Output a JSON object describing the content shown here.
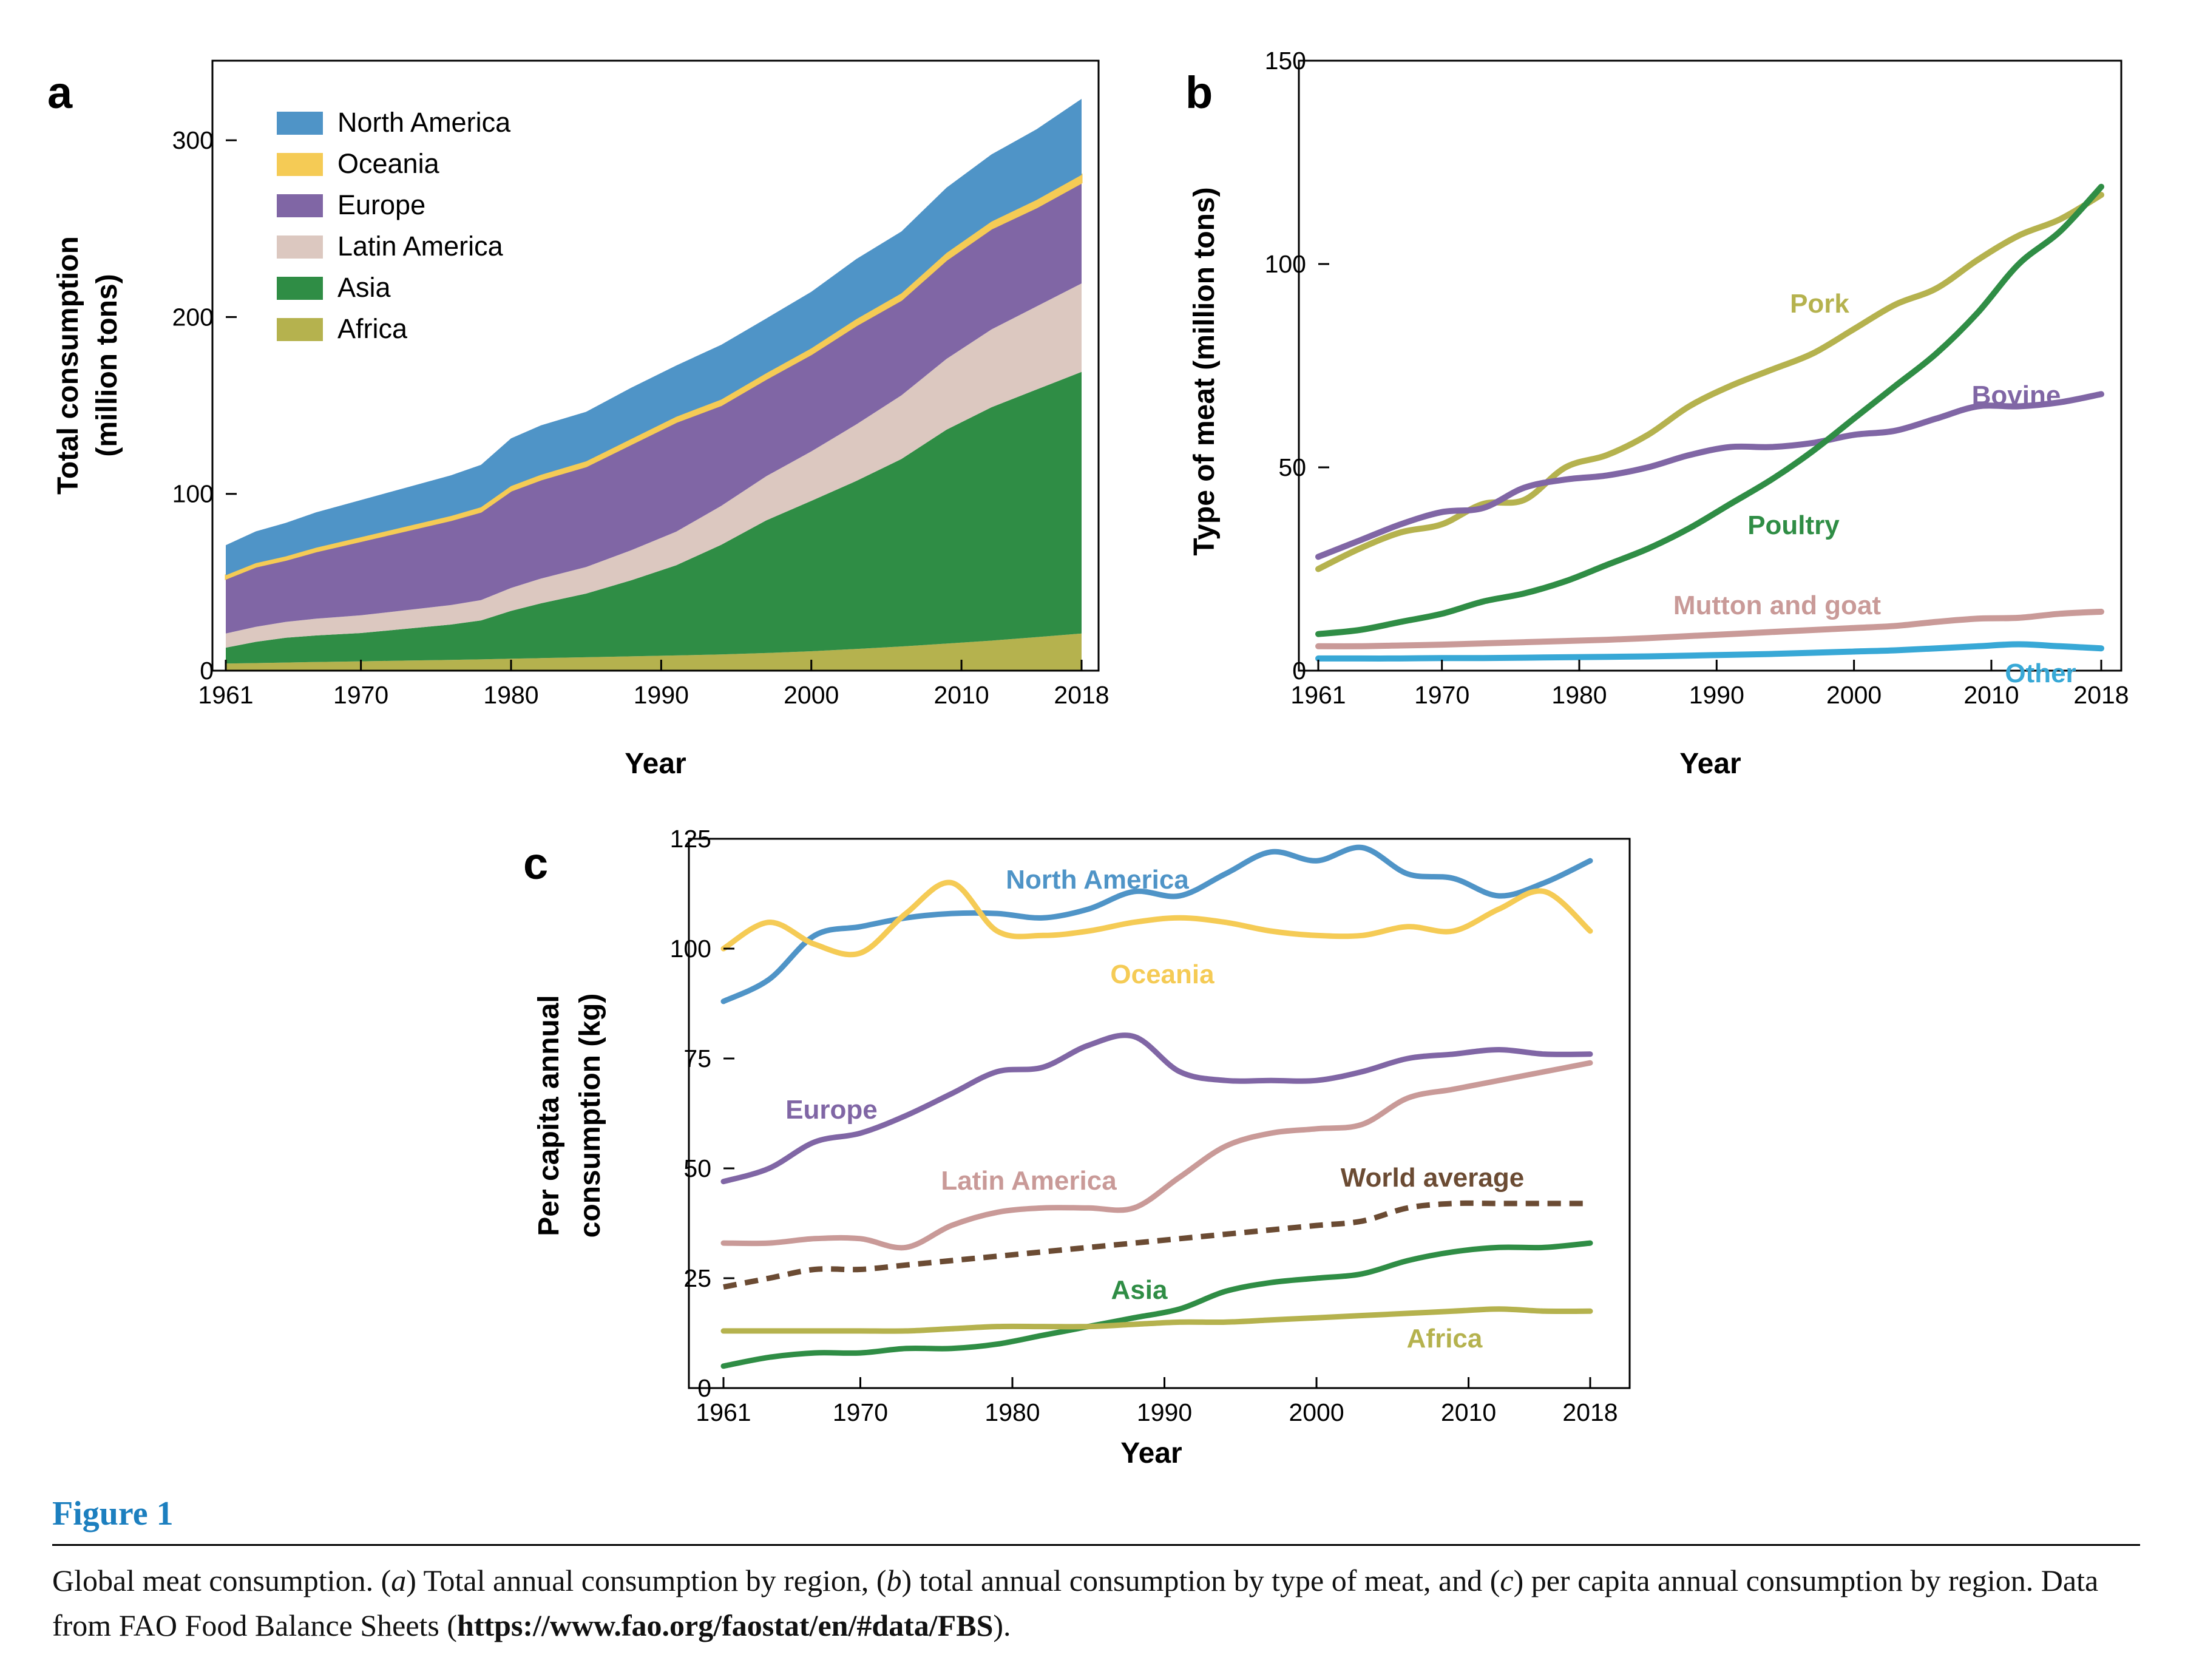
{
  "figure": {
    "label": "Figure 1",
    "caption": {
      "lead": "Global meat consumption. (",
      "a": "a",
      "mid1": ") Total annual consumption by region, (",
      "b": "b",
      "mid2": ") total annual consumption by type of meat, and (",
      "c": "c",
      "mid3": ") per capita annual consumption by region. Data from FAO Food Balance Sheets (",
      "link": "https://www.fao.org/faostat/en/#data/FBS",
      "tail": ")."
    }
  },
  "chart_data": [
    {
      "panel": "a",
      "type": "area",
      "stacked": true,
      "xlabel": "Year",
      "ylabel_lines": [
        "Total consumption",
        "(million tons)"
      ],
      "xlim": [
        1961,
        2018
      ],
      "ylim": [
        0,
        345
      ],
      "xticks": [
        1961,
        1970,
        1980,
        1990,
        2000,
        2010,
        2018
      ],
      "yticks": [
        0,
        100,
        200,
        300
      ],
      "legend_position": "top-left",
      "x": [
        1961,
        1963,
        1965,
        1967,
        1970,
        1973,
        1976,
        1978,
        1980,
        1982,
        1985,
        1988,
        1991,
        1994,
        1997,
        2000,
        2003,
        2006,
        2009,
        2012,
        2015,
        2018
      ],
      "series": [
        {
          "name": "Africa",
          "color": "#b5b24e",
          "values": [
            4,
            4.3,
            4.6,
            4.9,
            5.3,
            5.7,
            6.1,
            6.4,
            6.8,
            7.1,
            7.6,
            8.1,
            8.6,
            9.2,
            10,
            11,
            12.3,
            13.7,
            15.3,
            17,
            19,
            21
          ]
        },
        {
          "name": "Asia",
          "color": "#2f8d45",
          "values": [
            9,
            12,
            14,
            15,
            16,
            18,
            20,
            22,
            27,
            31,
            36,
            43,
            51,
            62,
            75,
            85,
            95,
            106,
            121,
            132,
            140,
            148
          ]
        },
        {
          "name": "Latin America",
          "color": "#dcc8c0",
          "values": [
            8,
            8.5,
            9,
            9.5,
            10,
            10.5,
            11,
            11.5,
            13,
            14,
            15,
            17,
            19,
            22,
            25,
            28,
            32,
            36,
            40,
            44,
            47,
            50
          ]
        },
        {
          "name": "Europe",
          "color": "#8066a5",
          "values": [
            31,
            34,
            35,
            38,
            42,
            45,
            48,
            50,
            55,
            56,
            57,
            60,
            62,
            57,
            55,
            55,
            56,
            54,
            56,
            57,
            56,
            57
          ]
        },
        {
          "name": "Oceania",
          "color": "#f5cb55",
          "values": [
            2,
            2,
            2,
            2.1,
            2.2,
            2.3,
            2.4,
            2.5,
            2.6,
            2.7,
            2.8,
            2.9,
            3,
            3.1,
            3.2,
            3.3,
            3.5,
            3.7,
            3.9,
            4,
            4.2,
            4.4
          ]
        },
        {
          "name": "North America",
          "color": "#4f94c7",
          "values": [
            17,
            18,
            19,
            20,
            21,
            22,
            23,
            24,
            27,
            28,
            28,
            29,
            29,
            31,
            31,
            32,
            34,
            35,
            37,
            38,
            40,
            43
          ]
        }
      ]
    },
    {
      "panel": "b",
      "type": "line",
      "xlabel": "Year",
      "ylabel": "Type of meat (million tons)",
      "xlim": [
        1961,
        2018
      ],
      "ylim": [
        0,
        150
      ],
      "xticks": [
        1961,
        1970,
        1980,
        1990,
        2000,
        2010,
        2018
      ],
      "yticks": [
        0,
        50,
        100,
        150
      ],
      "x": [
        1961,
        1964,
        1967,
        1970,
        1973,
        1976,
        1979,
        1982,
        1985,
        1988,
        1991,
        1994,
        1997,
        2000,
        2003,
        2006,
        2009,
        2012,
        2015,
        2018
      ],
      "series": [
        {
          "name": "Pork",
          "color": "#b5b24e",
          "values": [
            25,
            30,
            34,
            36,
            41,
            42,
            50,
            53,
            58,
            65,
            70,
            74,
            78,
            84,
            90,
            94,
            101,
            107,
            111,
            117
          ]
        },
        {
          "name": "Bovine",
          "color": "#8066a5",
          "values": [
            28,
            32,
            36,
            39,
            40,
            45,
            47,
            48,
            50,
            53,
            55,
            55,
            56,
            58,
            59,
            62,
            65,
            65,
            66,
            68
          ]
        },
        {
          "name": "Poultry",
          "color": "#2f8d45",
          "values": [
            9,
            10,
            12,
            14,
            17,
            19,
            22,
            26,
            30,
            35,
            41,
            47,
            54,
            62,
            70,
            78,
            88,
            100,
            108,
            119
          ]
        },
        {
          "name": "Mutton and goat",
          "color": "#c99a98",
          "values": [
            6,
            6,
            6.2,
            6.4,
            6.7,
            7,
            7.3,
            7.6,
            8,
            8.5,
            9,
            9.5,
            10,
            10.5,
            11,
            12,
            12.8,
            13,
            14,
            14.5
          ]
        },
        {
          "name": "Other",
          "color": "#38a8d6",
          "values": [
            3,
            3,
            3,
            3.1,
            3.1,
            3.2,
            3.3,
            3.4,
            3.5,
            3.7,
            3.9,
            4.1,
            4.4,
            4.7,
            5,
            5.5,
            6,
            6.5,
            6,
            5.5
          ]
        }
      ]
    },
    {
      "panel": "c",
      "type": "line",
      "xlabel": "Year",
      "ylabel_lines": [
        "Per capita annual",
        "consumption (kg)"
      ],
      "xlim": [
        1961,
        2018
      ],
      "ylim": [
        0,
        125
      ],
      "xticks": [
        1961,
        1970,
        1980,
        1990,
        2000,
        2010,
        2018
      ],
      "yticks": [
        0,
        25,
        50,
        75,
        100,
        125
      ],
      "x": [
        1961,
        1964,
        1967,
        1970,
        1973,
        1976,
        1979,
        1982,
        1985,
        1988,
        1991,
        1994,
        1997,
        2000,
        2003,
        2006,
        2009,
        2012,
        2015,
        2018
      ],
      "series": [
        {
          "name": "North America",
          "color": "#4f94c7",
          "dashed": false,
          "values": [
            88,
            93,
            103,
            105,
            107,
            108,
            108,
            107,
            109,
            113,
            112,
            117,
            122,
            120,
            123,
            117,
            116,
            112,
            115,
            120
          ]
        },
        {
          "name": "Oceania",
          "color": "#f5cb55",
          "dashed": false,
          "values": [
            100,
            106,
            101,
            99,
            108,
            115,
            104,
            103,
            104,
            106,
            107,
            106,
            104,
            103,
            103,
            105,
            104,
            109,
            113,
            104
          ]
        },
        {
          "name": "Europe",
          "color": "#8066a5",
          "dashed": false,
          "values": [
            47,
            50,
            56,
            58,
            62,
            67,
            72,
            73,
            78,
            80,
            72,
            70,
            70,
            70,
            72,
            75,
            76,
            77,
            76,
            76
          ]
        },
        {
          "name": "Latin America",
          "color": "#c99a98",
          "dashed": false,
          "values": [
            33,
            33,
            34,
            34,
            32,
            37,
            40,
            41,
            41,
            41,
            48,
            55,
            58,
            59,
            60,
            66,
            68,
            70,
            72,
            74
          ]
        },
        {
          "name": "World average",
          "color": "#6b4b33",
          "dashed": true,
          "values": [
            23,
            25,
            27,
            27,
            28,
            29,
            30,
            31,
            32,
            33,
            34,
            35,
            36,
            37,
            38,
            41,
            42,
            42,
            42,
            42
          ]
        },
        {
          "name": "Asia",
          "color": "#2f8d45",
          "dashed": false,
          "values": [
            5,
            7,
            8,
            8,
            9,
            9,
            10,
            12,
            14,
            16,
            18,
            22,
            24,
            25,
            26,
            29,
            31,
            32,
            32,
            33
          ]
        },
        {
          "name": "Africa",
          "color": "#b5b24e",
          "dashed": false,
          "values": [
            13,
            13,
            13,
            13,
            13,
            13.5,
            14,
            14,
            14,
            14.5,
            15,
            15,
            15.5,
            16,
            16.5,
            17,
            17.5,
            18,
            17.5,
            17.5
          ]
        }
      ]
    }
  ]
}
